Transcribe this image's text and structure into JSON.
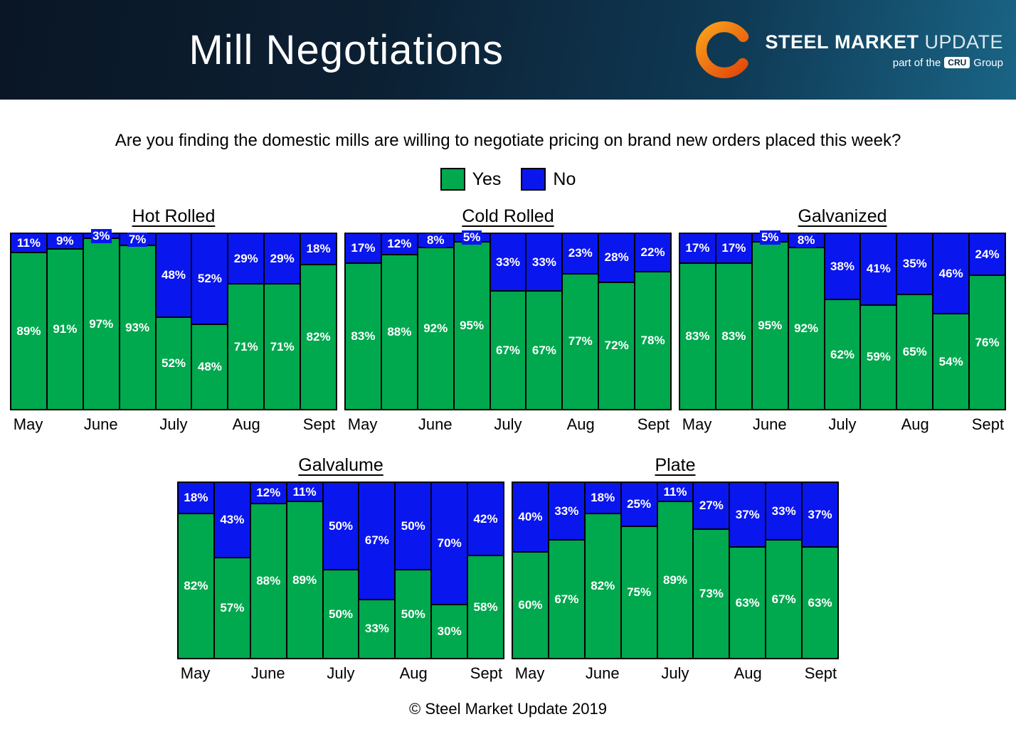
{
  "header": {
    "title": "Mill Negotiations",
    "logo": {
      "steel": "STEEL",
      "market": "MARKET",
      "update": "UPDATE",
      "tagline_prefix": "part of the",
      "tagline_cru": "CRU",
      "tagline_suffix": "Group"
    }
  },
  "question": "Are you finding the domestic mills are willing to negotiate pricing on brand new orders placed this week?",
  "legend": {
    "yes_label": "Yes",
    "no_label": "No"
  },
  "colors": {
    "yes": "#00A84E",
    "no": "#0A16EE"
  },
  "footer": "© Steel Market Update 2019",
  "chart_data": [
    {
      "type": "bar",
      "stacked": true,
      "title": "Hot Rolled",
      "categories": [
        "May",
        "May",
        "June",
        "June",
        "July",
        "July",
        "Aug",
        "Aug",
        "Sept"
      ],
      "x_tick_labels": [
        "May",
        "June",
        "July",
        "Aug",
        "Sept"
      ],
      "ylim": [
        0,
        100
      ],
      "unit": "%",
      "series": [
        {
          "name": "Yes",
          "color": "#00A84E",
          "values": [
            89,
            91,
            97,
            93,
            52,
            48,
            71,
            71,
            82
          ]
        },
        {
          "name": "No",
          "color": "#0A16EE",
          "values": [
            11,
            9,
            3,
            7,
            48,
            52,
            29,
            29,
            18
          ]
        }
      ]
    },
    {
      "type": "bar",
      "stacked": true,
      "title": "Cold Rolled",
      "categories": [
        "May",
        "May",
        "June",
        "June",
        "July",
        "July",
        "Aug",
        "Aug",
        "Sept"
      ],
      "x_tick_labels": [
        "May",
        "June",
        "July",
        "Aug",
        "Sept"
      ],
      "ylim": [
        0,
        100
      ],
      "unit": "%",
      "series": [
        {
          "name": "Yes",
          "color": "#00A84E",
          "values": [
            83,
            88,
            92,
            95,
            67,
            67,
            77,
            72,
            78
          ]
        },
        {
          "name": "No",
          "color": "#0A16EE",
          "values": [
            17,
            12,
            8,
            5,
            33,
            33,
            23,
            28,
            22
          ]
        }
      ]
    },
    {
      "type": "bar",
      "stacked": true,
      "title": "Galvanized",
      "categories": [
        "May",
        "May",
        "June",
        "June",
        "July",
        "July",
        "Aug",
        "Aug",
        "Sept"
      ],
      "x_tick_labels": [
        "May",
        "June",
        "July",
        "Aug",
        "Sept"
      ],
      "ylim": [
        0,
        100
      ],
      "unit": "%",
      "series": [
        {
          "name": "Yes",
          "color": "#00A84E",
          "values": [
            83,
            83,
            95,
            92,
            62,
            59,
            65,
            54,
            76
          ]
        },
        {
          "name": "No",
          "color": "#0A16EE",
          "values": [
            17,
            17,
            5,
            8,
            38,
            41,
            35,
            46,
            24
          ]
        }
      ]
    },
    {
      "type": "bar",
      "stacked": true,
      "title": "Galvalume",
      "categories": [
        "May",
        "May",
        "June",
        "June",
        "July",
        "July",
        "Aug",
        "Aug",
        "Sept"
      ],
      "x_tick_labels": [
        "May",
        "June",
        "July",
        "Aug",
        "Sept"
      ],
      "ylim": [
        0,
        100
      ],
      "unit": "%",
      "series": [
        {
          "name": "Yes",
          "color": "#00A84E",
          "values": [
            82,
            57,
            88,
            89,
            50,
            33,
            50,
            30,
            58
          ]
        },
        {
          "name": "No",
          "color": "#0A16EE",
          "values": [
            18,
            43,
            12,
            11,
            50,
            67,
            50,
            70,
            42
          ]
        }
      ]
    },
    {
      "type": "bar",
      "stacked": true,
      "title": "Plate",
      "categories": [
        "May",
        "May",
        "June",
        "June",
        "July",
        "July",
        "Aug",
        "Aug",
        "Sept"
      ],
      "x_tick_labels": [
        "May",
        "June",
        "July",
        "Aug",
        "Sept"
      ],
      "ylim": [
        0,
        100
      ],
      "unit": "%",
      "series": [
        {
          "name": "Yes",
          "color": "#00A84E",
          "values": [
            60,
            67,
            82,
            75,
            89,
            73,
            63,
            67,
            63
          ]
        },
        {
          "name": "No",
          "color": "#0A16EE",
          "values": [
            40,
            33,
            18,
            25,
            11,
            27,
            37,
            33,
            37
          ]
        }
      ]
    }
  ]
}
